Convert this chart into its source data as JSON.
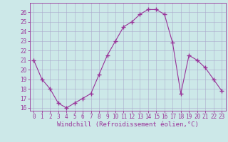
{
  "x": [
    0,
    1,
    2,
    3,
    4,
    5,
    6,
    7,
    8,
    9,
    10,
    11,
    12,
    13,
    14,
    15,
    16,
    17,
    18,
    19,
    20,
    21,
    22,
    23
  ],
  "y": [
    21,
    19,
    18,
    16.5,
    16,
    16.5,
    17,
    17.5,
    19.5,
    21.5,
    23,
    24.5,
    25,
    25.8,
    26.3,
    26.3,
    25.8,
    22.8,
    17.5,
    21.5,
    21,
    20.2,
    19,
    17.8
  ],
  "line_color": "#993399",
  "marker": "+",
  "marker_size": 4,
  "background_color": "#cce8e8",
  "grid_color": "#aaaacc",
  "xlabel": "Windchill (Refroidissement éolien,°C)",
  "ylim_min": 15.7,
  "ylim_max": 27.0,
  "xlim_min": -0.5,
  "xlim_max": 23.5,
  "yticks": [
    16,
    17,
    18,
    19,
    20,
    21,
    22,
    23,
    24,
    25,
    26
  ],
  "xticks": [
    0,
    1,
    2,
    3,
    4,
    5,
    6,
    7,
    8,
    9,
    10,
    11,
    12,
    13,
    14,
    15,
    16,
    17,
    18,
    19,
    20,
    21,
    22,
    23
  ],
  "tick_fontsize": 5.5,
  "label_fontsize": 6.5,
  "color": "#993399"
}
